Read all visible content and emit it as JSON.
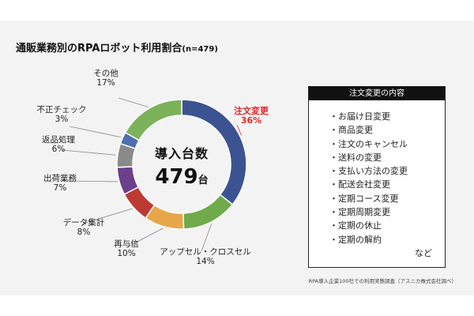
{
  "title": {
    "main": "通販業務別のRPAロボット利用割合",
    "n": "(n=479)"
  },
  "center": {
    "label": "導入台数",
    "value": "479",
    "unit": "台"
  },
  "legend_box": {
    "header": "注文変更の内容",
    "items": [
      "お届け日変更",
      "商品変更",
      "注文のキャンセル",
      "送料の変更",
      "支払い方法の変更",
      "配送会社変更",
      "定期コース変更",
      "定期周期変更",
      "定期の休止",
      "定期の解約"
    ],
    "etc": "など"
  },
  "footnote": "RPA導入企業100社での利用実態調査（アスニカ株式会社調べ）",
  "chart_data": {
    "type": "pie",
    "variant": "donut",
    "title": "通販業務別のRPAロボット利用割合",
    "categories": [
      "注文変更",
      "アップセル・クロスセル",
      "再与信",
      "データ集計",
      "出荷業務",
      "返品処理",
      "不正チェック",
      "その他"
    ],
    "values": [
      36,
      14,
      10,
      8,
      7,
      6,
      3,
      17
    ],
    "value_labels": [
      "36%",
      "14%",
      "10%",
      "8%",
      "7%",
      "6%",
      "3%",
      "17%"
    ],
    "colors": [
      "#3c5391",
      "#6fab4b",
      "#e8a64b",
      "#bd3a34",
      "#6c3f8c",
      "#8a8a8a",
      "#4f6eaf",
      "#7cb25a"
    ],
    "highlight_color": "#e2262b"
  }
}
